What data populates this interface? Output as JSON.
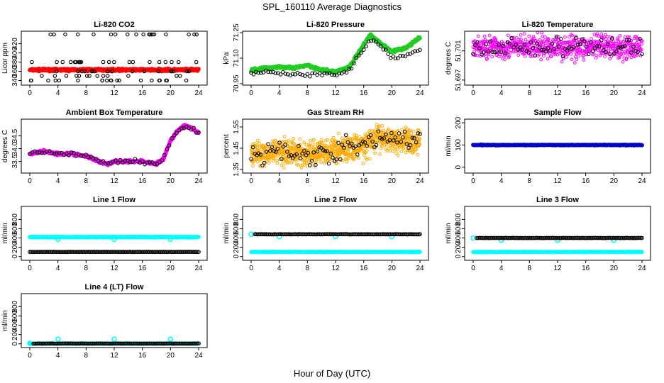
{
  "figure": {
    "title": "SPL_160110  Average Diagnostics",
    "xlabel": "Hour of Day (UTC)"
  },
  "chart_data": [
    {
      "type": "scatter",
      "title": "Li-820 CO2",
      "ylabel": "Licor ppm",
      "xlim": [
        0,
        24
      ],
      "ylim": [
        333,
        444
      ],
      "xticks": [
        "0",
        "4",
        "8",
        "12",
        "16",
        "20",
        "24"
      ],
      "yticks": [
        340,
        360,
        380,
        400,
        420
      ],
      "series": [
        {
          "color": "#ff0000",
          "style": "dense-line",
          "level": 363,
          "noise": 2,
          "points": 600
        },
        {
          "color": "#000000",
          "style": "open-circle",
          "levels": [
            340,
            350,
            360,
            380,
            440
          ]
        }
      ]
    },
    {
      "type": "scatter",
      "title": "Li-820 Pressure",
      "ylabel": "kPa",
      "xlim": [
        0,
        24
      ],
      "ylim": [
        70.95,
        71.25
      ],
      "xticks": [
        "0",
        "4",
        "8",
        "12",
        "16",
        "20",
        "24"
      ],
      "yticks": [
        "70.95",
        "71.10",
        "71.25"
      ],
      "series": [
        {
          "color": "#22cc22",
          "style": "dense-line",
          "x": [
            0,
            2,
            4,
            6,
            8,
            10,
            12,
            14,
            16,
            17,
            18,
            20,
            22,
            24
          ],
          "y": [
            71.03,
            71.04,
            71.05,
            71.04,
            71.06,
            71.03,
            71.02,
            71.05,
            71.18,
            71.24,
            71.2,
            71.14,
            71.16,
            71.22
          ]
        },
        {
          "color": "#000000",
          "style": "open-circle-sparse",
          "x": [
            0,
            2,
            4,
            6,
            8,
            10,
            12,
            14,
            16,
            17,
            18,
            20,
            22,
            24
          ],
          "y": [
            71.01,
            71.02,
            71.01,
            71.01,
            71.0,
            71.01,
            71.0,
            71.03,
            71.16,
            71.21,
            71.18,
            71.1,
            71.12,
            71.15
          ]
        }
      ]
    },
    {
      "type": "scatter",
      "title": "Li-820 Temperature",
      "ylabel": "degrees C",
      "xlim": [
        0,
        24
      ],
      "ylim": [
        51.6965,
        51.7035
      ],
      "xticks": [
        "0",
        "4",
        "8",
        "12",
        "16",
        "20",
        "24"
      ],
      "yticks": [
        "51.697",
        "51.701"
      ],
      "series": [
        {
          "color": "#ff00ff",
          "style": "scatter-dense",
          "level": 51.7015,
          "noise": 0.0012,
          "points": 700
        },
        {
          "color": "#000000",
          "style": "open-circle-sparse",
          "level": 51.7015,
          "noise": 0.001,
          "points": 80
        }
      ]
    },
    {
      "type": "scatter",
      "title": "Ambient Box Temperature",
      "ylabel": "degrees C",
      "xlim": [
        0,
        24
      ],
      "ylim": [
        33.1,
        35.1
      ],
      "xticks": [
        "0",
        "4",
        "8",
        "12",
        "16",
        "20",
        "24"
      ],
      "yticks": [
        "33.5",
        "34.0",
        "34.5"
      ],
      "series": [
        {
          "color": "#ff00ff",
          "style": "dense-line",
          "x": [
            0,
            2,
            4,
            6,
            8,
            10,
            11,
            12,
            14,
            16,
            18,
            19,
            20,
            21,
            22,
            23,
            24
          ],
          "y": [
            33.8,
            33.9,
            33.8,
            33.8,
            33.7,
            33.5,
            33.4,
            33.5,
            33.5,
            33.5,
            33.4,
            33.6,
            34.3,
            34.7,
            34.9,
            34.8,
            34.6
          ]
        },
        {
          "color": "#000000",
          "style": "open-circle-sparse",
          "x": [
            0,
            2,
            4,
            6,
            8,
            10,
            11,
            12,
            14,
            16,
            18,
            19,
            20,
            21,
            22,
            23,
            24
          ],
          "y": [
            33.8,
            33.9,
            33.8,
            33.8,
            33.7,
            33.5,
            33.4,
            33.5,
            33.5,
            33.5,
            33.4,
            33.6,
            34.3,
            34.7,
            34.9,
            34.8,
            34.6
          ]
        }
      ]
    },
    {
      "type": "scatter",
      "title": "Gas Stream RH",
      "ylabel": "percent",
      "xlim": [
        0,
        24
      ],
      "ylim": [
        1.34,
        1.58
      ],
      "xticks": [
        "0",
        "4",
        "8",
        "12",
        "16",
        "20",
        "24"
      ],
      "yticks": [
        "1.35",
        "1.45",
        "1.55"
      ],
      "series": [
        {
          "color": "#ffaa00",
          "style": "scatter-dense",
          "x": [
            0,
            4,
            8,
            12,
            16,
            18,
            20,
            24
          ],
          "y": [
            1.42,
            1.44,
            1.42,
            1.44,
            1.46,
            1.5,
            1.49,
            1.48
          ],
          "noise": 0.045,
          "points": 900
        },
        {
          "color": "#000000",
          "style": "open-circle-sparse",
          "x": [
            0,
            4,
            8,
            12,
            16,
            18,
            20,
            24
          ],
          "y": [
            1.42,
            1.44,
            1.42,
            1.44,
            1.46,
            1.5,
            1.49,
            1.48
          ],
          "noise": 0.04,
          "points": 90
        }
      ]
    },
    {
      "type": "scatter",
      "title": "Sample Flow",
      "ylabel": "ml/min",
      "xlim": [
        0,
        24
      ],
      "ylim": [
        -20,
        210
      ],
      "xticks": [
        "0",
        "4",
        "8",
        "12",
        "16",
        "20",
        "24"
      ],
      "yticks": [
        0,
        100,
        200
      ],
      "series": [
        {
          "color": "#000000",
          "style": "open-circle-dense",
          "level": 100,
          "noise": 1.5,
          "points": 150
        },
        {
          "color": "#0000cc",
          "style": "dense-line",
          "level": 100,
          "noise": 1,
          "points": 300
        }
      ]
    },
    {
      "type": "scatter",
      "title": "Line 1 Flow",
      "ylabel": "ml/min",
      "xlim": [
        0,
        24
      ],
      "ylim": [
        -50,
        1050
      ],
      "xticks": [
        "0",
        "4",
        "8",
        "12",
        "16",
        "20",
        "24"
      ],
      "yticks": [
        0,
        200,
        400,
        600,
        800
      ],
      "series": [
        {
          "color": "#00ffff",
          "style": "dense-line",
          "level": 420,
          "noise": 8,
          "points": 600,
          "spikes": [
            [
              4,
              370
            ],
            [
              12,
              370
            ],
            [
              20,
              370
            ]
          ]
        },
        {
          "color": "#000000",
          "style": "open-circle-dense",
          "level": 100,
          "noise": 2,
          "points": 150
        }
      ]
    },
    {
      "type": "scatter",
      "title": "Line 2 Flow",
      "ylabel": "ml/min",
      "xlim": [
        0,
        24
      ],
      "ylim": [
        -50,
        1050
      ],
      "xticks": [
        "0",
        "4",
        "8",
        "12",
        "16",
        "20",
        "24"
      ],
      "yticks": [
        0,
        200,
        400,
        600,
        800
      ],
      "series": [
        {
          "color": "#00ffff",
          "style": "dense-line",
          "level": 100,
          "noise": 4,
          "points": 600,
          "spikes": [
            [
              0,
              480
            ],
            [
              4,
              430
            ],
            [
              12,
              430
            ],
            [
              20,
              430
            ]
          ]
        },
        {
          "color": "#000000",
          "style": "open-circle-dense",
          "level": 480,
          "noise": 3,
          "points": 150,
          "xstart": 0.5
        }
      ]
    },
    {
      "type": "scatter",
      "title": "Line 3 Flow",
      "ylabel": "ml/min",
      "xlim": [
        0,
        24
      ],
      "ylim": [
        -50,
        1050
      ],
      "xticks": [
        "0",
        "4",
        "8",
        "12",
        "16",
        "20",
        "24"
      ],
      "yticks": [
        0,
        200,
        400,
        600,
        800
      ],
      "series": [
        {
          "color": "#00ffff",
          "style": "dense-line",
          "level": 100,
          "noise": 4,
          "points": 600,
          "spikes": [
            [
              0,
              400
            ],
            [
              4,
              350
            ],
            [
              12,
              350
            ],
            [
              20,
              350
            ]
          ]
        },
        {
          "color": "#000000",
          "style": "open-circle-dense",
          "level": 400,
          "noise": 3,
          "points": 150,
          "xstart": 0.5
        }
      ]
    },
    {
      "type": "scatter",
      "title": "Line 4 (LT) Flow",
      "ylabel": "ml/min",
      "xlim": [
        0,
        24
      ],
      "ylim": [
        -50,
        1050
      ],
      "xticks": [
        "0",
        "4",
        "8",
        "12",
        "16",
        "20",
        "24"
      ],
      "yticks": [
        0,
        200,
        400,
        600,
        800
      ],
      "series": [
        {
          "color": "#00ffff",
          "style": "dense-line",
          "level": 5,
          "noise": 3,
          "points": 600,
          "spikes": [
            [
              0,
              10
            ],
            [
              4,
              100
            ],
            [
              12,
              100
            ],
            [
              20,
              100
            ]
          ]
        },
        {
          "color": "#000000",
          "style": "open-circle-dense",
          "level": 5,
          "noise": 2,
          "points": 150,
          "xstart": 0.5
        }
      ]
    }
  ]
}
